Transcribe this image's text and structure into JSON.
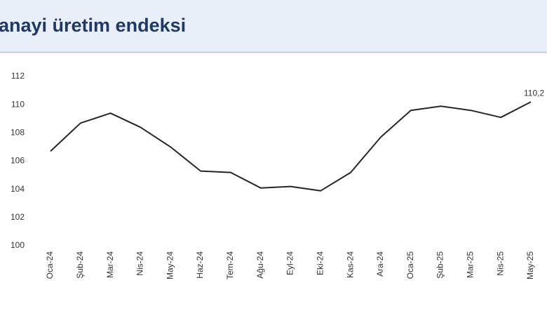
{
  "chart_data": {
    "type": "line",
    "title": "anayi üretim endeksi",
    "categories": [
      "Oca-24",
      "Şub-24",
      "Mar-24",
      "Nis-24",
      "May-24",
      "Haz-24",
      "Tem-24",
      "Ağu-24",
      "Eyl-24",
      "Eki-24",
      "Kas-24",
      "Ara-24",
      "Oca-25",
      "Şub-25",
      "Mar-25",
      "Nis-25",
      "May-25"
    ],
    "series": [
      {
        "color": "#262626",
        "values": [
          106.7,
          108.7,
          109.4,
          108.4,
          107.0,
          105.3,
          105.2,
          104.1,
          104.2,
          103.9,
          105.2,
          107.7,
          109.6,
          109.9,
          109.6,
          109.1,
          110.2
        ],
        "value_labels": [
          null,
          null,
          null,
          null,
          null,
          null,
          null,
          null,
          null,
          null,
          null,
          null,
          null,
          null,
          null,
          null,
          "110,2"
        ]
      }
    ],
    "ylim": [
      100,
      112
    ],
    "yticks": [
      100,
      102,
      104,
      106,
      108,
      110,
      112
    ],
    "grid": false
  }
}
